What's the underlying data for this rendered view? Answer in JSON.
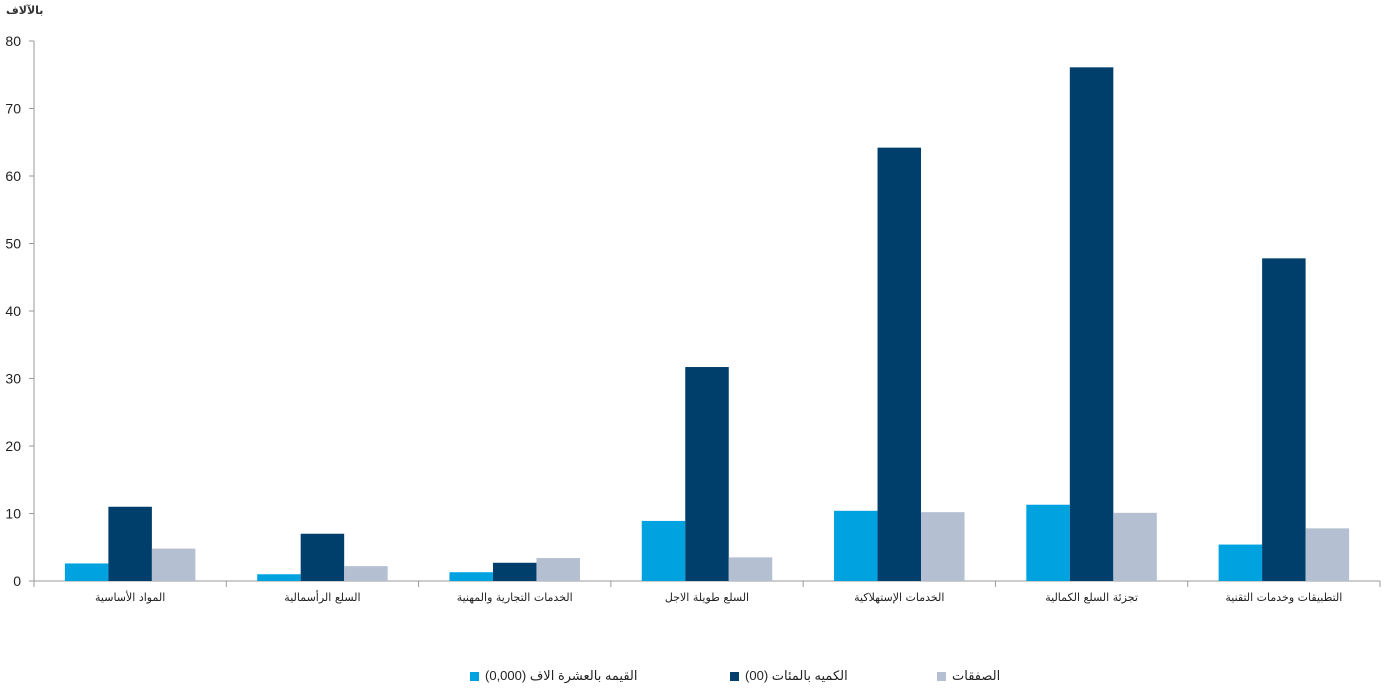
{
  "unit_label": "بالآلاف",
  "legend": [
    {
      "label": "القيمه بالعشرة الاف (0,000)",
      "color": "#00a3e0"
    },
    {
      "label": "الكميه بالمئات  (00)",
      "color": "#003f6b"
    },
    {
      "label": "الصفقات",
      "color": "#b4bfd1"
    }
  ],
  "chart_data": {
    "type": "bar",
    "title": "",
    "xlabel": "",
    "ylabel": "بالآلاف",
    "ylim": [
      0,
      80
    ],
    "yticks": [
      0,
      10,
      20,
      30,
      40,
      50,
      60,
      70,
      80
    ],
    "grid": false,
    "legend_position": "bottom",
    "categories": [
      "المواد الأساسية",
      "السلع الرأسمالية",
      "الخدمات التجارية والمهنية",
      "السلع طويلة الاجل",
      "الخدمات الإستهلاكية",
      "تجزئة السلع الكمالية",
      "التطبيقات وخدمات التقنية"
    ],
    "series": [
      {
        "name": "القيمه بالعشرة الاف (0,000)",
        "color": "#00a3e0",
        "values": [
          2.6,
          1.0,
          1.3,
          8.9,
          10.4,
          11.3,
          5.4
        ]
      },
      {
        "name": "الكميه بالمئات  (00)",
        "color": "#003f6b",
        "values": [
          11.0,
          7.0,
          2.7,
          31.7,
          64.2,
          76.1,
          47.8
        ]
      },
      {
        "name": "الصفقات",
        "color": "#b4bfd1",
        "values": [
          4.8,
          2.2,
          3.4,
          3.5,
          10.2,
          10.1,
          7.8
        ]
      }
    ]
  }
}
